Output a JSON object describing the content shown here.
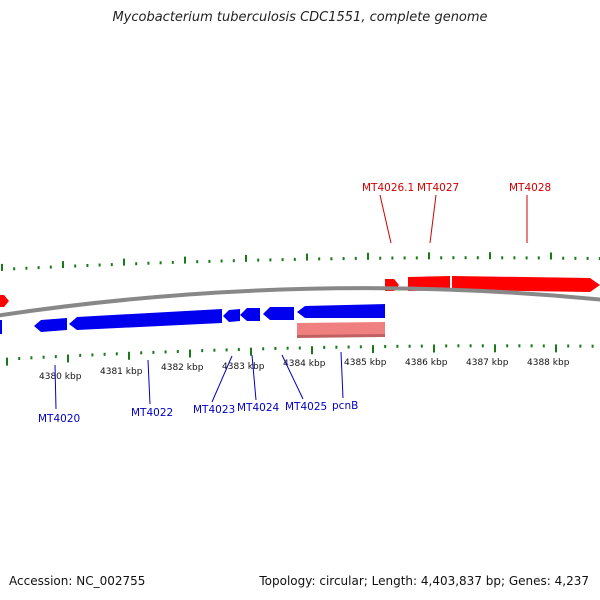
{
  "title": "Mycobacterium tuberculosis CDC1551, complete genome",
  "accession": "Accession: NC_002755",
  "summary": "Topology: circular; Length: 4,403,837 bp; Genes: 4,237",
  "colors": {
    "forward_gene": "#ff0000",
    "reverse_gene": "#0000ee",
    "rna_gene": "#f08080",
    "backbone": "#888888",
    "ticks": "#1a7a1a",
    "forward_label": "#d00000",
    "reverse_label": "#0000c0"
  },
  "scale": {
    "major_labels": [
      "4380 kbp",
      "4381 kbp",
      "4382 kbp",
      "4383 kbp",
      "4384 kbp",
      "4385 kbp",
      "4386 kbp",
      "4387 kbp",
      "4388 kbp"
    ]
  },
  "genes": {
    "forward": [
      {
        "name": "MT4026.1",
        "strand": "+",
        "labeled": true
      },
      {
        "name": "MT4027",
        "strand": "+",
        "labeled": true
      },
      {
        "name": "MT4028",
        "strand": "+",
        "labeled": true
      }
    ],
    "reverse": [
      {
        "name": "MT4020",
        "strand": "-",
        "labeled": true
      },
      {
        "name": "MT4022",
        "strand": "-",
        "labeled": true
      },
      {
        "name": "MT4023",
        "strand": "-",
        "labeled": true
      },
      {
        "name": "MT4024",
        "strand": "-",
        "labeled": true
      },
      {
        "name": "MT4025",
        "strand": "-",
        "labeled": true
      },
      {
        "name": "pcnB",
        "strand": "-",
        "labeled": true
      }
    ]
  }
}
